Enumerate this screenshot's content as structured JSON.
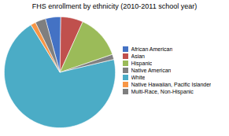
{
  "chart_data": {
    "type": "pie",
    "title": "FHS enrollment by ethnicity (2010-2011 school year)",
    "categories": [
      "African American",
      "Asian",
      "Hispanic",
      "Native American",
      "White",
      "Native Hawaiian, Pacific Islander",
      "Multi-Race, Non-Hispanic"
    ],
    "values": [
      4.5,
      6.5,
      13.0,
      1.5,
      70.0,
      1.5,
      3.0
    ],
    "colors": [
      "#4472C4",
      "#C0504D",
      "#9BBB59",
      "#808080",
      "#4BACC6",
      "#F79646",
      "#7F7F7F"
    ],
    "legend": "right"
  }
}
